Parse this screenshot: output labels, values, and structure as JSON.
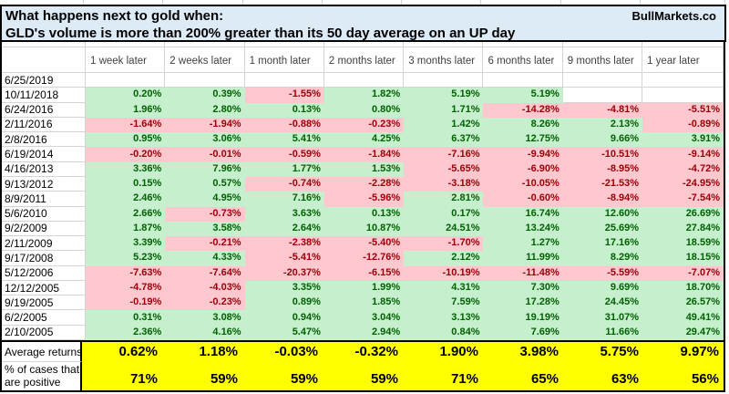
{
  "title": {
    "line1": "What happens next to gold when:",
    "line2": "GLD's volume is more than 200% greater than its 50 day average on an UP day",
    "brand": "BullMarkets.co"
  },
  "table": {
    "date_column_header": "",
    "columns": [
      "1 week later",
      "2 weeks later",
      "1 month later",
      "2 months later",
      "3 months later",
      "6 months later",
      "9 months later",
      "1 year later"
    ],
    "rows": [
      {
        "date": "6/25/2019",
        "values": [
          "",
          "",
          "",
          "",
          "",
          "",
          "",
          ""
        ],
        "states": [
          "e",
          "e",
          "e",
          "e",
          "e",
          "e",
          "e",
          "e"
        ]
      },
      {
        "date": "10/11/2018",
        "values": [
          "0.20%",
          "0.39%",
          "-1.55%",
          "1.82%",
          "5.19%",
          "5.19%",
          "",
          ""
        ],
        "states": [
          "g",
          "g",
          "r",
          "g",
          "g",
          "g",
          "e",
          "e"
        ]
      },
      {
        "date": "6/24/2016",
        "values": [
          "1.96%",
          "2.80%",
          "0.13%",
          "0.80%",
          "1.71%",
          "-14.28%",
          "-4.81%",
          "-5.51%"
        ],
        "states": [
          "g",
          "g",
          "g",
          "g",
          "g",
          "r",
          "r",
          "r"
        ]
      },
      {
        "date": "2/11/2016",
        "values": [
          "-1.64%",
          "-1.94%",
          "-0.88%",
          "-0.23%",
          "1.42%",
          "8.26%",
          "2.13%",
          "-0.89%"
        ],
        "states": [
          "r",
          "r",
          "r",
          "r",
          "g",
          "g",
          "g",
          "r"
        ]
      },
      {
        "date": "2/8/2016",
        "values": [
          "0.95%",
          "3.06%",
          "5.41%",
          "4.25%",
          "6.37%",
          "12.75%",
          "9.66%",
          "3.91%"
        ],
        "states": [
          "g",
          "g",
          "g",
          "g",
          "g",
          "g",
          "g",
          "g"
        ]
      },
      {
        "date": "6/19/2014",
        "values": [
          "-0.20%",
          "-0.01%",
          "-0.59%",
          "-1.84%",
          "-7.16%",
          "-9.94%",
          "-10.51%",
          "-9.14%"
        ],
        "states": [
          "r",
          "r",
          "r",
          "r",
          "r",
          "r",
          "r",
          "r"
        ]
      },
      {
        "date": "4/16/2013",
        "values": [
          "3.36%",
          "7.96%",
          "1.77%",
          "1.53%",
          "-5.65%",
          "-6.90%",
          "-8.95%",
          "-4.72%"
        ],
        "states": [
          "g",
          "g",
          "g",
          "g",
          "r",
          "r",
          "r",
          "r"
        ]
      },
      {
        "date": "9/13/2012",
        "values": [
          "0.15%",
          "0.57%",
          "-0.74%",
          "-2.28%",
          "-3.18%",
          "-10.05%",
          "-21.53%",
          "-24.95%"
        ],
        "states": [
          "g",
          "g",
          "r",
          "r",
          "r",
          "r",
          "r",
          "r"
        ]
      },
      {
        "date": "8/9/2011",
        "values": [
          "2.46%",
          "4.95%",
          "7.16%",
          "-5.96%",
          "2.81%",
          "-0.60%",
          "-8.94%",
          "-7.54%"
        ],
        "states": [
          "g",
          "g",
          "g",
          "r",
          "g",
          "r",
          "r",
          "r"
        ]
      },
      {
        "date": "5/6/2010",
        "values": [
          "2.66%",
          "-0.73%",
          "3.63%",
          "0.13%",
          "0.17%",
          "16.74%",
          "12.60%",
          "26.69%"
        ],
        "states": [
          "g",
          "r",
          "g",
          "g",
          "g",
          "g",
          "g",
          "g"
        ]
      },
      {
        "date": "9/2/2009",
        "values": [
          "1.87%",
          "3.58%",
          "2.64%",
          "10.87%",
          "24.51%",
          "13.24%",
          "25.69%",
          "27.84%"
        ],
        "states": [
          "g",
          "g",
          "g",
          "g",
          "g",
          "g",
          "g",
          "g"
        ]
      },
      {
        "date": "2/11/2009",
        "values": [
          "3.39%",
          "-0.21%",
          "-2.38%",
          "-5.40%",
          "-1.70%",
          "1.27%",
          "17.16%",
          "18.59%"
        ],
        "states": [
          "g",
          "r",
          "r",
          "r",
          "r",
          "g",
          "g",
          "g"
        ]
      },
      {
        "date": "9/17/2008",
        "values": [
          "5.23%",
          "4.33%",
          "-5.41%",
          "-12.76%",
          "2.12%",
          "11.99%",
          "8.29%",
          "18.15%"
        ],
        "states": [
          "g",
          "g",
          "r",
          "r",
          "g",
          "g",
          "g",
          "g"
        ]
      },
      {
        "date": "5/12/2006",
        "values": [
          "-7.63%",
          "-7.64%",
          "-20.37%",
          "-6.15%",
          "-10.19%",
          "-11.48%",
          "-5.59%",
          "-7.07%"
        ],
        "states": [
          "r",
          "r",
          "r",
          "r",
          "r",
          "r",
          "r",
          "r"
        ]
      },
      {
        "date": "12/12/2005",
        "values": [
          "-4.78%",
          "-4.03%",
          "3.35%",
          "1.99%",
          "4.31%",
          "7.30%",
          "9.69%",
          "18.70%"
        ],
        "states": [
          "r",
          "r",
          "g",
          "g",
          "g",
          "g",
          "g",
          "g"
        ]
      },
      {
        "date": "9/19/2005",
        "values": [
          "-0.19%",
          "-0.23%",
          "0.89%",
          "1.85%",
          "7.59%",
          "17.28%",
          "24.45%",
          "26.57%"
        ],
        "states": [
          "r",
          "r",
          "g",
          "g",
          "g",
          "g",
          "g",
          "g"
        ]
      },
      {
        "date": "6/2/2005",
        "values": [
          "0.31%",
          "3.08%",
          "0.94%",
          "3.04%",
          "3.13%",
          "19.19%",
          "31.07%",
          "49.41%"
        ],
        "states": [
          "g",
          "g",
          "g",
          "g",
          "g",
          "g",
          "g",
          "g"
        ]
      },
      {
        "date": "2/10/2005",
        "values": [
          "2.36%",
          "4.16%",
          "5.47%",
          "2.94%",
          "0.84%",
          "7.69%",
          "11.66%",
          "29.47%"
        ],
        "states": [
          "g",
          "g",
          "g",
          "g",
          "g",
          "g",
          "g",
          "g"
        ]
      }
    ]
  },
  "summary": {
    "average_label": "Average returns",
    "average_values": [
      "0.62%",
      "1.18%",
      "-0.03%",
      "-0.32%",
      "1.90%",
      "3.98%",
      "5.75%",
      "9.97%"
    ],
    "positive_label_line1": "% of cases that",
    "positive_label_line2": "are positive",
    "positive_values": [
      "71%",
      "59%",
      "59%",
      "59%",
      "71%",
      "65%",
      "63%",
      "56%"
    ]
  },
  "colors": {
    "green_bg": "#C6EFCE",
    "green_text": "#006100",
    "red_bg": "#FFC7CE",
    "red_text": "#9C0006",
    "yellow_bg": "#FFFF00",
    "title_bg": "#DDEBF7",
    "gridline": "#D4D4D4"
  }
}
